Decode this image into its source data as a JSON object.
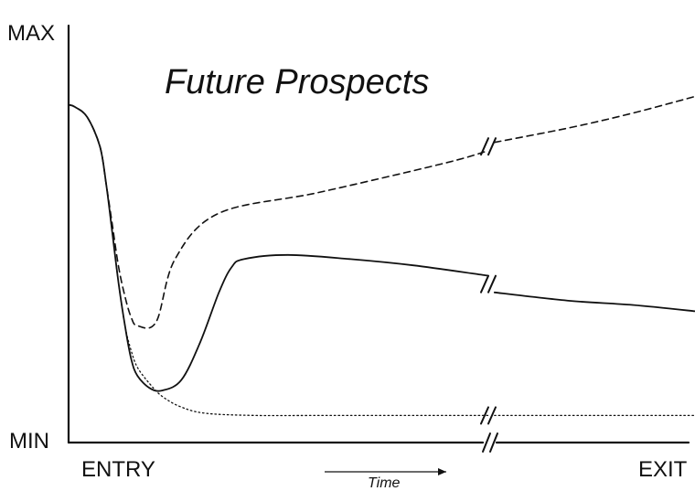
{
  "chart_data": {
    "type": "line",
    "title": "Future Prospects",
    "xlabel": "Time",
    "ylabel": "",
    "x_ticks": [
      "ENTRY",
      "EXIT"
    ],
    "y_ticks": [
      "MIN",
      "MAX"
    ],
    "xlim": [
      0,
      100
    ],
    "ylim": [
      0,
      100
    ],
    "axis_break": {
      "x": 67,
      "description": "break marks across the x axis and each series"
    },
    "grid": false,
    "legend": "none",
    "colors": {
      "ink": "#111111",
      "background": "#ffffff"
    },
    "series": [
      {
        "line_style": "dashed",
        "x": [
          0,
          1,
          3,
          5,
          6,
          7,
          8,
          9,
          10,
          11,
          14,
          17,
          24,
          40,
          60,
          67,
          68,
          80,
          90,
          100
        ],
        "y": [
          81,
          80.5,
          78,
          71,
          62,
          52,
          42,
          35,
          30,
          28,
          29,
          44,
          55,
          60,
          67,
          70,
          72,
          75.5,
          79,
          83
        ]
      },
      {
        "line_style": "solid",
        "x": [
          0,
          1,
          3,
          5,
          6,
          7,
          8,
          9,
          10,
          11,
          13,
          15,
          18,
          21,
          24,
          26,
          28,
          35,
          45,
          55,
          67,
          68,
          80,
          90,
          100
        ],
        "y": [
          81,
          80.5,
          78,
          71,
          62,
          50,
          38,
          28,
          20,
          16,
          13,
          12.5,
          15,
          24,
          36,
          42,
          44,
          45,
          44,
          42.5,
          40,
          36,
          34,
          33,
          31.5
        ]
      },
      {
        "line_style": "dotted",
        "x": [
          0,
          1,
          3,
          5,
          6,
          7,
          8,
          9,
          10,
          11,
          13,
          15,
          18,
          22,
          30,
          40,
          60,
          67,
          68,
          80,
          90,
          100
        ],
        "y": [
          81,
          80.5,
          78,
          71,
          62,
          50,
          38,
          28,
          22,
          18,
          14,
          11,
          8.5,
          7,
          6.5,
          6.5,
          6.5,
          6.5,
          6.5,
          6.5,
          6.5,
          6.5
        ]
      }
    ]
  }
}
